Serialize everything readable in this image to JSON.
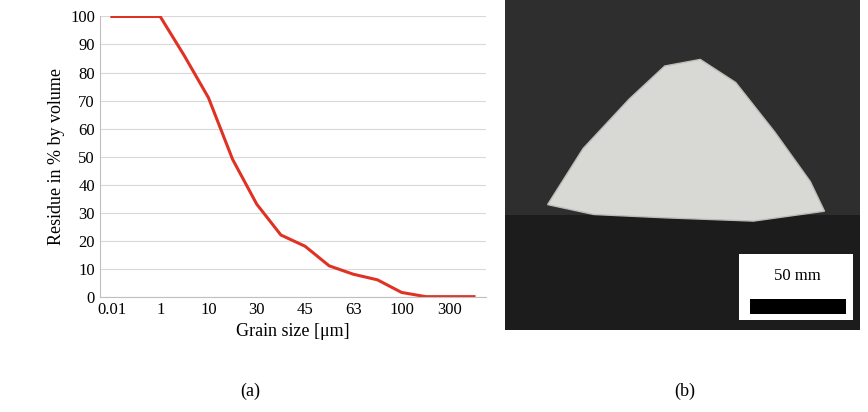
{
  "chart_data": {
    "type": "line",
    "x_label": "Grain size [μm]",
    "y_label": "Residue in % by volume",
    "categories": [
      "0.01",
      null,
      "1",
      null,
      "10",
      null,
      "30",
      null,
      "45",
      null,
      "63",
      null,
      "100",
      null,
      "300",
      null
    ],
    "values": [
      100,
      100,
      100,
      86,
      71,
      49,
      33,
      22,
      18,
      11,
      8,
      6,
      1.5,
      0,
      0,
      0
    ],
    "color": "#e03224",
    "ylim": [
      0,
      100
    ],
    "yticks": [
      0,
      10,
      20,
      30,
      40,
      50,
      60,
      70,
      80,
      90,
      100
    ],
    "grid": true
  },
  "panel_labels": [
    "(a)",
    "(b)"
  ],
  "photo": {
    "scale_bar_label": "50 mm"
  }
}
